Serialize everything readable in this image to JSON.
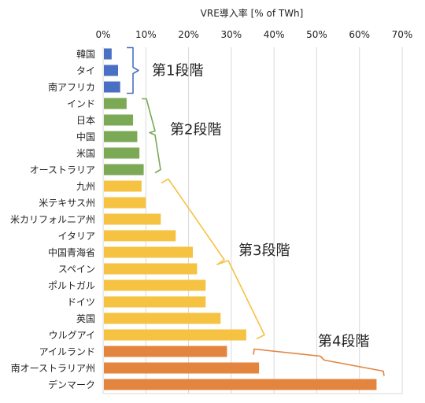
{
  "chart_data": {
    "type": "bar",
    "orientation": "horizontal",
    "title": "VRE導入率 [% of TWh]",
    "xlim": [
      0,
      70
    ],
    "x_ticks": [
      0,
      10,
      20,
      30,
      40,
      50,
      60,
      70
    ],
    "x_tick_labels": [
      "0%",
      "10%",
      "20%",
      "30%",
      "40%",
      "50%",
      "60%",
      "70%"
    ],
    "x_axis_position": "top",
    "grid": true,
    "categories": [
      "韓国",
      "タイ",
      "南アフリカ",
      "インド",
      "日本",
      "中国",
      "米国",
      "オーストラリア",
      "九州",
      "米テキサス州",
      "米カリフォルニア州",
      "イタリア",
      "中国青海省",
      "スペイン",
      "ポルトガル",
      "ドイツ",
      "英国",
      "ウルグアイ",
      "アイルランド",
      "南オーストラリア州",
      "デンマーク"
    ],
    "values": [
      2.0,
      3.5,
      4.0,
      5.5,
      7.0,
      8.0,
      8.5,
      9.5,
      9.0,
      10.0,
      13.5,
      17.0,
      21.0,
      22.0,
      24.0,
      24.0,
      27.5,
      33.5,
      29.0,
      36.5,
      64.0
    ],
    "stages": [
      {
        "label": "第1段階",
        "start": 0,
        "end": 2,
        "color": "#4a70c4"
      },
      {
        "label": "第2段階",
        "start": 3,
        "end": 7,
        "color": "#7ba956"
      },
      {
        "label": "第3段階",
        "start": 8,
        "end": 17,
        "color": "#f5c242"
      },
      {
        "label": "第4段階",
        "start": 18,
        "end": 20,
        "color": "#e3843f"
      }
    ]
  }
}
